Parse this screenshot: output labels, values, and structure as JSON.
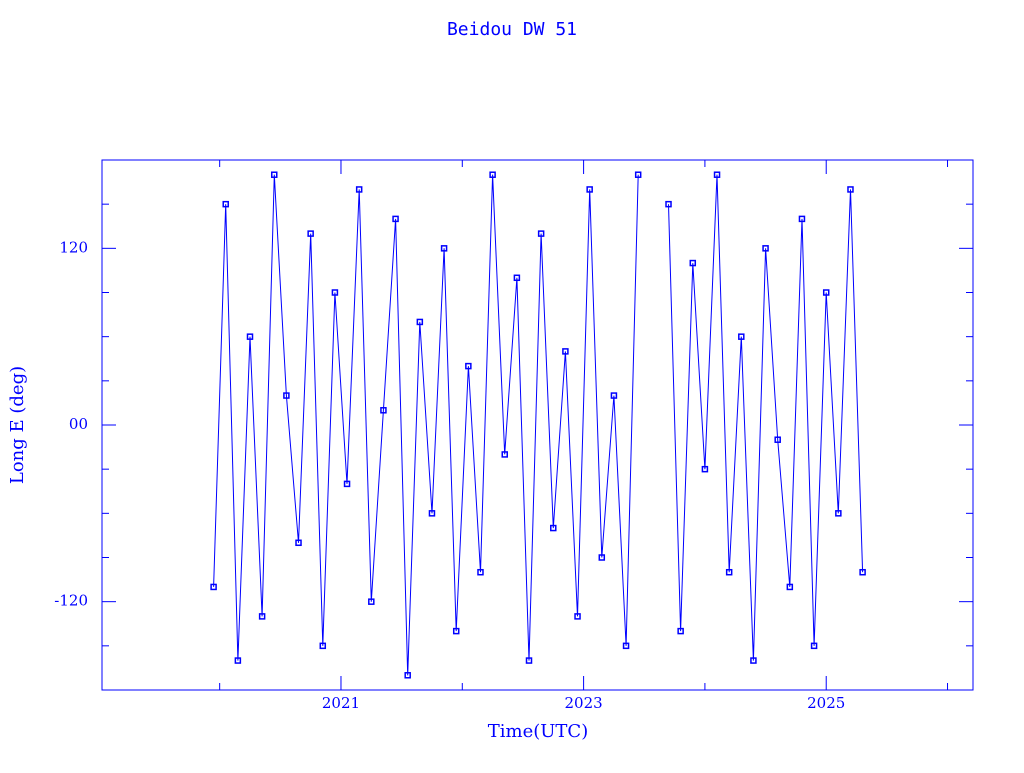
{
  "chart_data": {
    "type": "line",
    "title": "Beidou DW 51",
    "x_label": "Time(UTC)",
    "y_label": "Long E (deg)",
    "x": [
      2019.95,
      2020.05,
      2020.15,
      2020.25,
      2020.35,
      2020.45,
      2020.55,
      2020.65,
      2020.75,
      2020.85,
      2020.95,
      2021.05,
      2021.15,
      2021.25,
      2021.35,
      2021.45,
      2021.55,
      2021.65,
      2021.75,
      2021.85,
      2021.95,
      2022.05,
      2022.15,
      2022.25,
      2022.35,
      2022.45,
      2022.55,
      2022.65,
      2022.75,
      2022.85,
      2022.95,
      2023.05,
      2023.15,
      2023.25,
      2023.35,
      2023.45,
      2023.55,
      2023.7,
      2023.8,
      2023.9,
      2024.0,
      2024.1,
      2024.2,
      2024.3,
      2024.4,
      2024.5,
      2024.6,
      2024.7,
      2024.8,
      2024.9,
      2025.0,
      2025.1,
      2025.2,
      2025.3
    ],
    "series": [
      {
        "color": "#0000ff",
        "values": [
          -110,
          150,
          -160,
          60,
          -130,
          170,
          20,
          -80,
          130,
          -150,
          90,
          -40,
          160,
          -120,
          10,
          140,
          -170,
          70,
          -60,
          120,
          -140,
          40,
          -100,
          170,
          -20,
          100,
          -160,
          130,
          -70,
          50,
          -130,
          160,
          -90,
          20,
          -150,
          170,
          null,
          150,
          -140,
          110,
          -30,
          170,
          -100,
          60,
          -160,
          120,
          -10,
          -110,
          140,
          -150,
          90,
          -60,
          160,
          -100
        ]
      }
    ],
    "xlim": [
      2019.03,
      2026.21
    ],
    "xticks": [
      2021,
      2023,
      2025
    ],
    "xminor": [
      2020,
      2022,
      2024,
      2026
    ],
    "ylim": [
      -180,
      180
    ],
    "yticks": [
      -120,
      {
        "value": 0,
        "label": "00"
      },
      120
    ],
    "yminor": [
      -150,
      -90,
      -60,
      -30,
      30,
      60,
      90,
      150
    ],
    "markers": true
  }
}
